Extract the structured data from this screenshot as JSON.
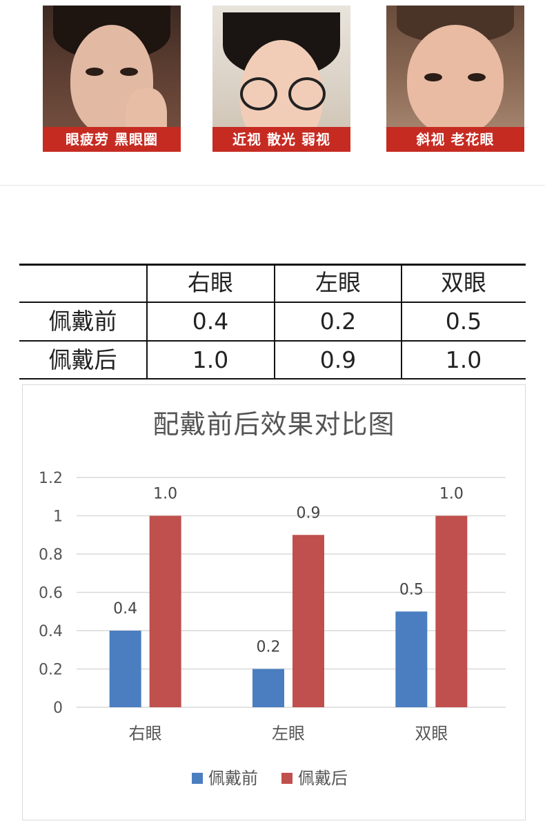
{
  "photos": [
    {
      "caption": "眼疲劳 黑眼圈"
    },
    {
      "caption": "近视 散光 弱视"
    },
    {
      "caption": "斜视 老花眼"
    }
  ],
  "table": {
    "header": [
      "",
      "右眼",
      "左眼",
      "双眼"
    ],
    "rows": [
      {
        "label": "佩戴前",
        "values": [
          "0.4",
          "0.2",
          "0.5"
        ]
      },
      {
        "label": "佩戴后",
        "values": [
          "1.0",
          "0.9",
          "1.0"
        ]
      }
    ]
  },
  "chart_data": {
    "type": "bar",
    "title": "配戴前后效果对比图",
    "xlabel": "",
    "ylabel": "",
    "categories": [
      "右眼",
      "左眼",
      "双眼"
    ],
    "series": [
      {
        "name": "佩戴前",
        "values": [
          0.4,
          0.2,
          0.5
        ],
        "labels": [
          "0.4",
          "0.2",
          "0.5"
        ],
        "color": "#4a7ec0"
      },
      {
        "name": "佩戴后",
        "values": [
          1.0,
          0.9,
          1.0
        ],
        "labels": [
          "1.0",
          "0.9",
          "1.0"
        ],
        "color": "#c0504d"
      }
    ],
    "ylim": [
      0,
      1.2
    ],
    "yticks": [
      "0",
      "0.2",
      "0.4",
      "0.6",
      "0.8",
      "1",
      "1.2"
    ],
    "grid": true,
    "legend": "bottom"
  }
}
